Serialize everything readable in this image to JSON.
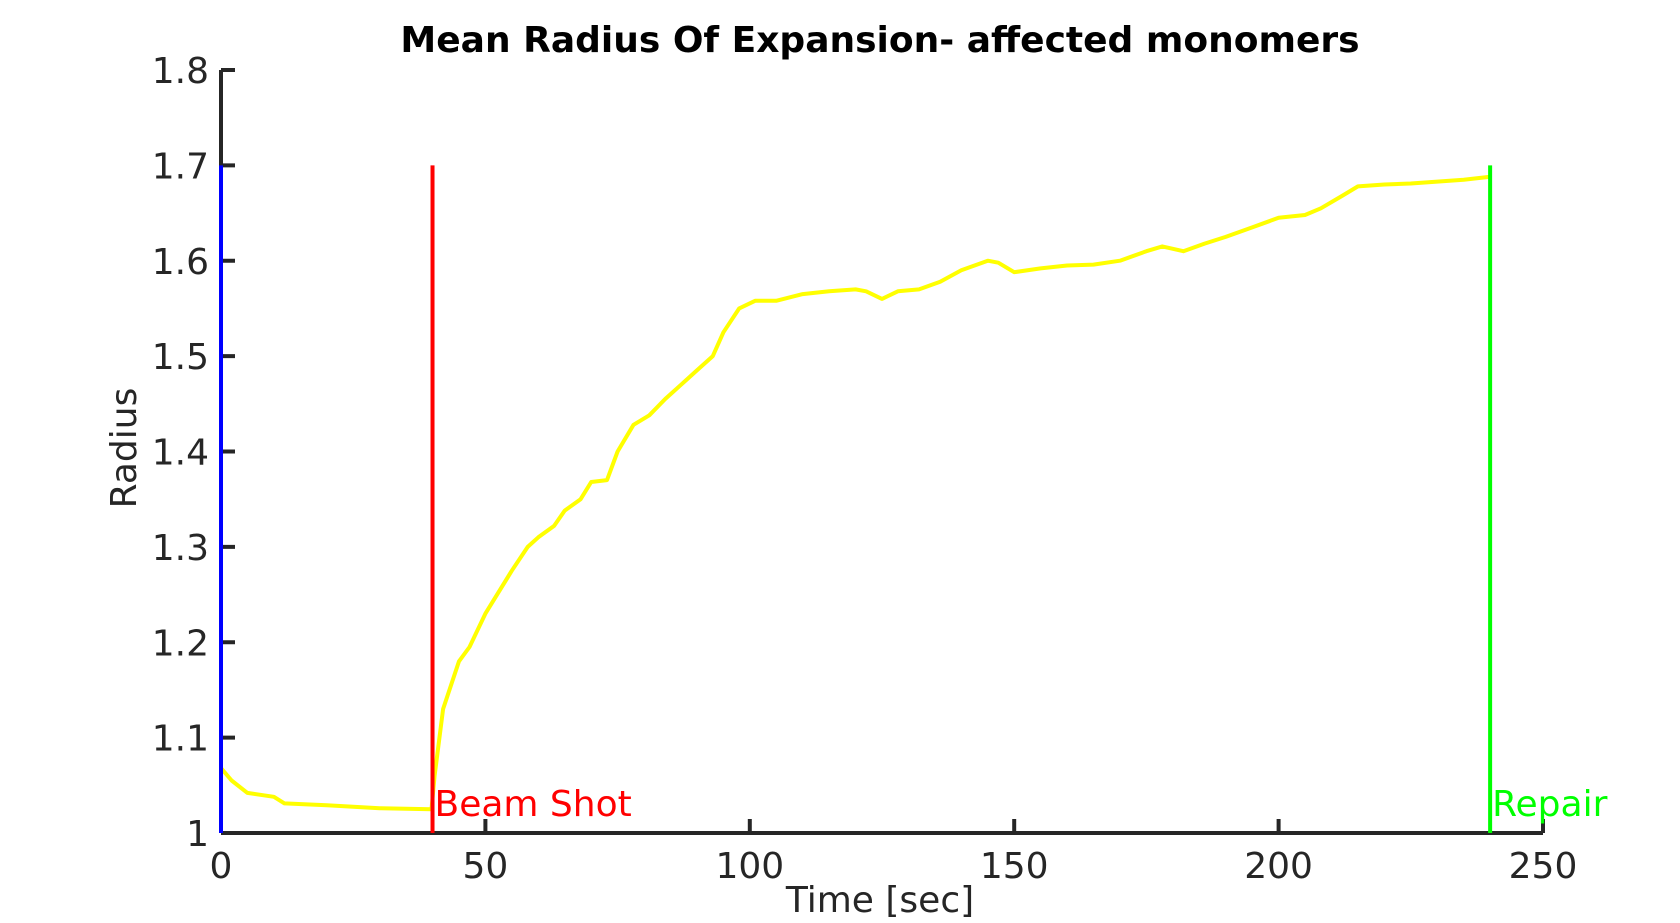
{
  "chart_data": {
    "type": "line",
    "title": "Mean Radius Of Expansion- affected monomers",
    "xlabel": "Time [sec]",
    "ylabel": "Radius",
    "xlim": [
      0,
      250
    ],
    "ylim": [
      1,
      1.8
    ],
    "xticks": [
      0,
      50,
      100,
      150,
      200,
      250
    ],
    "xtick_labels": [
      "0",
      "50",
      "100",
      "150",
      "200",
      "250"
    ],
    "yticks": [
      1,
      1.1,
      1.2,
      1.3,
      1.4,
      1.5,
      1.6,
      1.7,
      1.8
    ],
    "ytick_labels": [
      "1",
      "1.1",
      "1.2",
      "1.3",
      "1.4",
      "1.5",
      "1.6",
      "1.7",
      "1.8"
    ],
    "grid": false,
    "series": [
      {
        "color": "#ffff00",
        "x": [
          0,
          2,
          5,
          10,
          12,
          20,
          30,
          39.8,
          40.4,
          42,
          45,
          47,
          50,
          55,
          58,
          60,
          63,
          65,
          68,
          70,
          73,
          75,
          78,
          81,
          84,
          87,
          90,
          93,
          95,
          98,
          101,
          105,
          110,
          115,
          120,
          122,
          125,
          128,
          132,
          136,
          140,
          145,
          147,
          150,
          155,
          160,
          165,
          170,
          175,
          178,
          182,
          186,
          190,
          195,
          200,
          205,
          208,
          212,
          215,
          220,
          225,
          230,
          235,
          240
        ],
        "y": [
          1.068,
          1.055,
          1.042,
          1.038,
          1.031,
          1.029,
          1.026,
          1.025,
          1.06,
          1.13,
          1.18,
          1.195,
          1.23,
          1.275,
          1.3,
          1.31,
          1.322,
          1.338,
          1.35,
          1.368,
          1.37,
          1.4,
          1.428,
          1.438,
          1.455,
          1.47,
          1.485,
          1.5,
          1.525,
          1.55,
          1.558,
          1.558,
          1.565,
          1.568,
          1.57,
          1.568,
          1.56,
          1.568,
          1.57,
          1.578,
          1.59,
          1.6,
          1.598,
          1.588,
          1.592,
          1.595,
          1.596,
          1.6,
          1.61,
          1.615,
          1.61,
          1.618,
          1.625,
          1.635,
          1.645,
          1.648,
          1.655,
          1.668,
          1.678,
          1.68,
          1.681,
          1.683,
          1.685,
          1.688
        ]
      }
    ],
    "vlines": [
      {
        "x": 0,
        "y_range": [
          1,
          1.7
        ],
        "color": "#0000ff",
        "label": ""
      },
      {
        "x": 40,
        "y_range": [
          1,
          1.7
        ],
        "color": "#ff0000",
        "label": "Beam Shot"
      },
      {
        "x": 240,
        "y_range": [
          1,
          1.7
        ],
        "color": "#00ff00",
        "label": "Repair"
      }
    ]
  }
}
